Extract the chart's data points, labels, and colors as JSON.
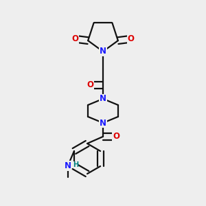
{
  "bg_color": "#eeeeee",
  "atom_color_N": "#1a1aff",
  "atom_color_O": "#dd0000",
  "atom_color_H": "#008080",
  "bond_color": "#111111",
  "bond_width": 1.6,
  "font_size_atom": 8.5,
  "fig_size": [
    3.0,
    3.0
  ],
  "dpi": 100,
  "xlim": [
    0.15,
    0.85
  ],
  "ylim": [
    0.02,
    1.0
  ]
}
